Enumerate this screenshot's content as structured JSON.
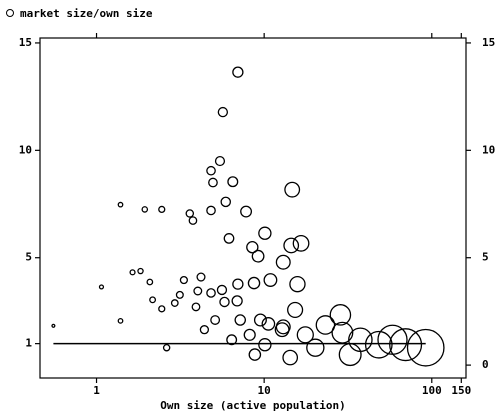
{
  "chart_data": {
    "type": "scatter",
    "xlabel": "Own size (active population)",
    "xlog": true,
    "xlim": [
      0.46,
      160
    ],
    "xticks": [
      1,
      10,
      100,
      150
    ],
    "ylim": [
      -0.6,
      15.23
    ],
    "yticks": [
      1,
      5,
      10,
      15
    ],
    "y2lim": [
      -0.6,
      15.23
    ],
    "y2ticks": [
      0,
      5,
      10,
      15
    ],
    "hline": 1,
    "series": [
      {
        "name": "market size/own size",
        "color": "#000000",
        "x": [
          0.553,
          1.07,
          1.39,
          1.39,
          1.64,
          1.94,
          1.83,
          2.08,
          2.16,
          2.45,
          2.45,
          2.62,
          2.93,
          3.14,
          3.32,
          3.6,
          3.76,
          3.92,
          4.02,
          4.2,
          4.82,
          4.82,
          4.95,
          5.45,
          5.67,
          5.9,
          6.17,
          6.5,
          6.97,
          7.8,
          8.5,
          9.2,
          10.1,
          14.7,
          14.5,
          16.6,
          13.0,
          10.9,
          15.8,
          8.7,
          6.97,
          5.6,
          5.8,
          5.1,
          4.4,
          7.2,
          9.5,
          10.6,
          8.2,
          6.4,
          10.1,
          8.8,
          12.8,
          15.3,
          17.6,
          20.2,
          23.2,
          28.5,
          29.3,
          32.6,
          37.5,
          48.3,
          58.3,
          69.8,
          92,
          14.3,
          13.0,
          6.9,
          4.82
        ],
        "values": [
          1.83,
          3.64,
          7.47,
          2.06,
          4.32,
          7.25,
          4.38,
          3.87,
          3.04,
          7.25,
          2.62,
          0.81,
          2.89,
          3.27,
          3.96,
          7.06,
          6.73,
          2.71,
          3.45,
          4.1,
          7.2,
          9.05,
          8.5,
          9.5,
          11.78,
          7.6,
          5.9,
          8.54,
          13.64,
          7.15,
          5.49,
          5.07,
          6.14,
          8.17,
          5.57,
          5.67,
          4.79,
          3.96,
          3.77,
          3.82,
          3.77,
          3.5,
          2.94,
          2.1,
          1.65,
          2.1,
          2.1,
          1.92,
          1.41,
          1.18,
          0.95,
          0.49,
          1.65,
          2.57,
          1.41,
          0.81,
          1.87,
          2.34,
          1.51,
          0.49,
          1.18,
          0.95,
          1.18,
          0.95,
          0.81,
          0.35,
          1.78,
          2.99,
          3.36
        ]
      }
    ]
  }
}
